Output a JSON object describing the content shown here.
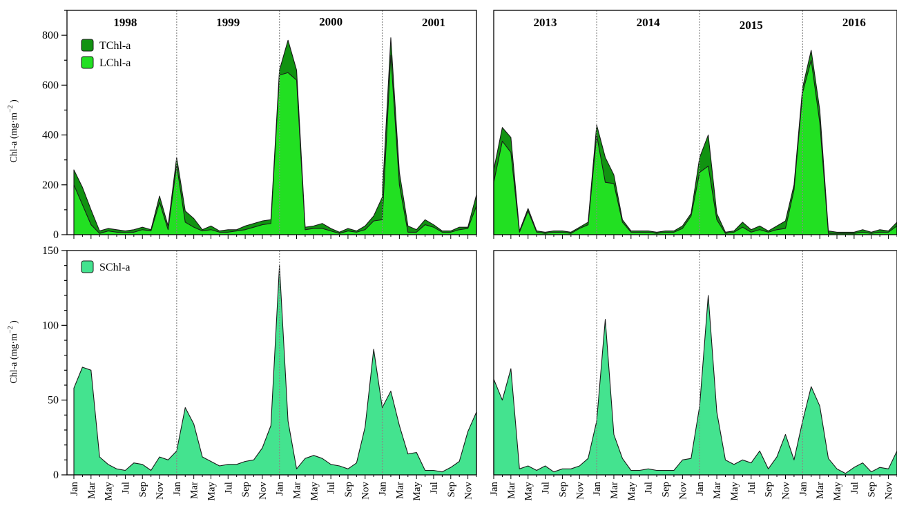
{
  "colors": {
    "tchl": "#119311",
    "lchl": "#22e022",
    "schl": "#44e38f",
    "frame": "#000000",
    "divider": "#888888"
  },
  "ylabel": "Chl-a (mg·m",
  "ylabel_exp": "−2",
  "ylabel_close": " )",
  "chart_data": [
    {
      "type": "area",
      "panel": "top-left",
      "years": [
        "1998",
        "1999",
        "2000",
        "2001"
      ],
      "x": [
        "Jan",
        "Feb",
        "Mar",
        "Apr",
        "May",
        "Jun",
        "Jul",
        "Aug",
        "Sep",
        "Oct",
        "Nov",
        "Dec",
        "Jan",
        "Feb",
        "Mar",
        "Apr",
        "May",
        "Jun",
        "Jul",
        "Aug",
        "Sep",
        "Oct",
        "Nov",
        "Dec",
        "Jan",
        "Feb",
        "Mar",
        "Apr",
        "May",
        "Jun",
        "Jul",
        "Aug",
        "Sep",
        "Oct",
        "Nov",
        "Dec",
        "Jan",
        "Feb",
        "Mar",
        "Apr",
        "May",
        "Jun",
        "Jul",
        "Aug",
        "Sep",
        "Oct",
        "Nov",
        "Dec"
      ],
      "xtick_labels": [
        "Jan",
        "Mar",
        "May",
        "Jul",
        "Sep",
        "Nov",
        "Jan",
        "Mar",
        "May",
        "Jul",
        "Sep",
        "Nov",
        "Jan",
        "Mar",
        "May",
        "Jul",
        "Sep",
        "Nov",
        "Jan",
        "Mar",
        "May",
        "Jul",
        "Sep",
        "Nov"
      ],
      "ylim": [
        0,
        900
      ],
      "yticks": [
        "0",
        "200",
        "400",
        "600",
        "800"
      ],
      "series": [
        {
          "name": "TChl-a",
          "values": [
            260,
            190,
            100,
            15,
            25,
            20,
            15,
            20,
            30,
            20,
            155,
            35,
            310,
            95,
            65,
            20,
            35,
            15,
            20,
            20,
            35,
            45,
            55,
            60,
            660,
            780,
            660,
            30,
            35,
            45,
            25,
            10,
            25,
            15,
            35,
            75,
            150,
            790,
            250,
            35,
            20,
            60,
            40,
            15,
            15,
            30,
            30,
            160
          ]
        },
        {
          "name": "LChl-a",
          "values": [
            200,
            120,
            40,
            5,
            15,
            10,
            10,
            10,
            20,
            15,
            130,
            20,
            280,
            50,
            30,
            15,
            20,
            10,
            10,
            15,
            20,
            30,
            40,
            45,
            640,
            650,
            620,
            20,
            25,
            25,
            15,
            5,
            15,
            10,
            20,
            55,
            60,
            720,
            200,
            10,
            10,
            40,
            30,
            10,
            10,
            20,
            25,
            115
          ]
        }
      ],
      "legend": "top-left"
    },
    {
      "type": "area",
      "panel": "top-right",
      "years": [
        "2013",
        "2014",
        "2015",
        "2016"
      ],
      "x": [
        "Jan",
        "Feb",
        "Mar",
        "Apr",
        "May",
        "Jun",
        "Jul",
        "Aug",
        "Sep",
        "Oct",
        "Nov",
        "Dec",
        "Jan",
        "Feb",
        "Mar",
        "Apr",
        "May",
        "Jun",
        "Jul",
        "Aug",
        "Sep",
        "Oct",
        "Nov",
        "Dec",
        "Jan",
        "Feb",
        "Mar",
        "Apr",
        "May",
        "Jun",
        "Jul",
        "Aug",
        "Sep",
        "Oct",
        "Nov",
        "Dec",
        "Jan",
        "Feb",
        "Mar",
        "Apr",
        "May",
        "Jun",
        "Jul",
        "Aug",
        "Sep",
        "Oct",
        "Nov",
        "Dec"
      ],
      "xtick_labels": [
        "Jan",
        "Mar",
        "May",
        "Jul",
        "Sep",
        "Nov",
        "Jan",
        "Mar",
        "May",
        "Jul",
        "Sep",
        "Nov",
        "Jan",
        "Mar",
        "May",
        "Jul",
        "Sep",
        "Nov",
        "Jan",
        "Mar",
        "May",
        "Jul",
        "Sep",
        "Nov"
      ],
      "ylim": [
        0,
        900
      ],
      "series": [
        {
          "name": "TChl-a",
          "values": [
            260,
            430,
            390,
            15,
            105,
            15,
            10,
            15,
            15,
            10,
            30,
            50,
            440,
            310,
            240,
            60,
            15,
            15,
            15,
            10,
            15,
            15,
            35,
            85,
            310,
            400,
            85,
            10,
            15,
            50,
            20,
            35,
            15,
            35,
            55,
            200,
            590,
            740,
            500,
            15,
            10,
            10,
            10,
            20,
            10,
            20,
            15,
            50
          ]
        },
        {
          "name": "LChl-a",
          "values": [
            210,
            375,
            330,
            10,
            95,
            10,
            5,
            10,
            10,
            5,
            25,
            40,
            400,
            210,
            205,
            50,
            10,
            10,
            10,
            5,
            10,
            10,
            25,
            75,
            250,
            275,
            60,
            5,
            10,
            30,
            10,
            20,
            10,
            20,
            25,
            180,
            570,
            700,
            450,
            5,
            5,
            5,
            5,
            10,
            5,
            10,
            10,
            35
          ]
        }
      ]
    },
    {
      "type": "area",
      "panel": "bottom-left",
      "x": [
        "Jan",
        "Feb",
        "Mar",
        "Apr",
        "May",
        "Jun",
        "Jul",
        "Aug",
        "Sep",
        "Oct",
        "Nov",
        "Dec",
        "Jan",
        "Feb",
        "Mar",
        "Apr",
        "May",
        "Jun",
        "Jul",
        "Aug",
        "Sep",
        "Oct",
        "Nov",
        "Dec",
        "Jan",
        "Feb",
        "Mar",
        "Apr",
        "May",
        "Jun",
        "Jul",
        "Aug",
        "Sep",
        "Oct",
        "Nov",
        "Dec",
        "Jan",
        "Feb",
        "Mar",
        "Apr",
        "May",
        "Jun",
        "Jul",
        "Aug",
        "Sep",
        "Oct",
        "Nov",
        "Dec"
      ],
      "xtick_labels": [
        "Jan",
        "Mar",
        "May",
        "Jul",
        "Sep",
        "Nov",
        "Jan",
        "Mar",
        "May",
        "Jul",
        "Sep",
        "Nov",
        "Jan",
        "Mar",
        "May",
        "Jul",
        "Sep",
        "Nov",
        "Jan",
        "Mar",
        "May",
        "Jul",
        "Sep",
        "Nov"
      ],
      "ylim": [
        0,
        150
      ],
      "yticks": [
        "0",
        "50",
        "100",
        "150"
      ],
      "series": [
        {
          "name": "SChl-a",
          "values": [
            58,
            72,
            70,
            12,
            7,
            4,
            3,
            8,
            7,
            3,
            12,
            10,
            16,
            45,
            34,
            12,
            9,
            6,
            7,
            7,
            9,
            10,
            18,
            33,
            140,
            36,
            4,
            11,
            13,
            11,
            7,
            6,
            4,
            8,
            32,
            84,
            45,
            56,
            33,
            14,
            15,
            3,
            3,
            2,
            5,
            9,
            29,
            42
          ]
        }
      ],
      "legend": "top-left"
    },
    {
      "type": "area",
      "panel": "bottom-right",
      "x": [
        "Jan",
        "Feb",
        "Mar",
        "Apr",
        "May",
        "Jun",
        "Jul",
        "Aug",
        "Sep",
        "Oct",
        "Nov",
        "Dec",
        "Jan",
        "Feb",
        "Mar",
        "Apr",
        "May",
        "Jun",
        "Jul",
        "Aug",
        "Sep",
        "Oct",
        "Nov",
        "Dec",
        "Jan",
        "Feb",
        "Mar",
        "Apr",
        "May",
        "Jun",
        "Jul",
        "Aug",
        "Sep",
        "Oct",
        "Nov",
        "Dec",
        "Jan",
        "Feb",
        "Mar",
        "Apr",
        "May",
        "Jun",
        "Jul",
        "Aug",
        "Sep",
        "Oct",
        "Nov",
        "Dec"
      ],
      "xtick_labels": [
        "Jan",
        "Mar",
        "May",
        "Jul",
        "Sep",
        "Nov",
        "Jan",
        "Mar",
        "May",
        "Jul",
        "Sep",
        "Nov",
        "Jan",
        "Mar",
        "May",
        "Jul",
        "Sep",
        "Nov",
        "Jan",
        "Mar",
        "May",
        "Jul",
        "Sep",
        "Nov"
      ],
      "ylim": [
        0,
        150
      ],
      "series": [
        {
          "name": "SChl-a",
          "values": [
            64,
            50,
            71,
            4,
            6,
            3,
            6,
            2,
            4,
            4,
            6,
            11,
            36,
            104,
            27,
            11,
            3,
            3,
            4,
            3,
            3,
            3,
            10,
            11,
            46,
            120,
            42,
            10,
            7,
            10,
            8,
            16,
            4,
            12,
            27,
            10,
            36,
            59,
            46,
            11,
            4,
            1,
            5,
            8,
            2,
            5,
            4,
            16
          ]
        }
      ]
    }
  ]
}
